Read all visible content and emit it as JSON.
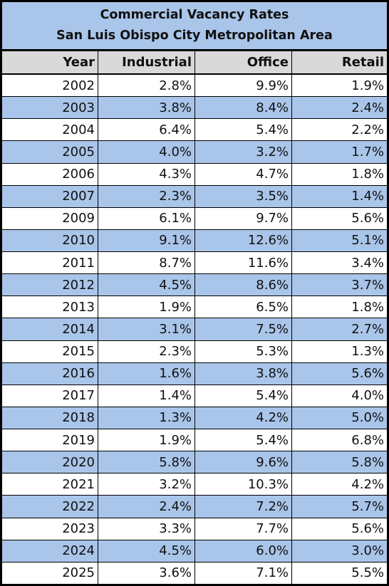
{
  "header": {
    "title": "Commercial Vacancy Rates",
    "subtitle": "San Luis Obispo City Metropolitan Area"
  },
  "table": {
    "columns": [
      "Year",
      "Industrial",
      "Office",
      "Retail"
    ],
    "rows": [
      [
        "2002",
        "2.8%",
        "9.9%",
        "1.9%"
      ],
      [
        "2003",
        "3.8%",
        "8.4%",
        "2.4%"
      ],
      [
        "2004",
        "6.4%",
        "5.4%",
        "2.2%"
      ],
      [
        "2005",
        "4.0%",
        "3.2%",
        "1.7%"
      ],
      [
        "2006",
        "4.3%",
        "4.7%",
        "1.8%"
      ],
      [
        "2007",
        "2.3%",
        "3.5%",
        "1.4%"
      ],
      [
        "2009",
        "6.1%",
        "9.7%",
        "5.6%"
      ],
      [
        "2010",
        "9.1%",
        "12.6%",
        "5.1%"
      ],
      [
        "2011",
        "8.7%",
        "11.6%",
        "3.4%"
      ],
      [
        "2012",
        "4.5%",
        "8.6%",
        "3.7%"
      ],
      [
        "2013",
        "1.9%",
        "6.5%",
        "1.8%"
      ],
      [
        "2014",
        "3.1%",
        "7.5%",
        "2.7%"
      ],
      [
        "2015",
        "2.3%",
        "5.3%",
        "1.3%"
      ],
      [
        "2016",
        "1.6%",
        "3.8%",
        "5.6%"
      ],
      [
        "2017",
        "1.4%",
        "5.4%",
        "4.0%"
      ],
      [
        "2018",
        "1.3%",
        "4.2%",
        "5.0%"
      ],
      [
        "2019",
        "1.9%",
        "5.4%",
        "6.8%"
      ],
      [
        "2020",
        "5.8%",
        "9.6%",
        "5.8%"
      ],
      [
        "2021",
        "3.2%",
        "10.3%",
        "4.2%"
      ],
      [
        "2022",
        "2.4%",
        "7.2%",
        "5.7%"
      ],
      [
        "2023",
        "3.3%",
        "7.7%",
        "5.6%"
      ],
      [
        "2024",
        "4.5%",
        "6.0%",
        "3.0%"
      ],
      [
        "2025",
        "3.6%",
        "7.1%",
        "5.5%"
      ]
    ]
  }
}
